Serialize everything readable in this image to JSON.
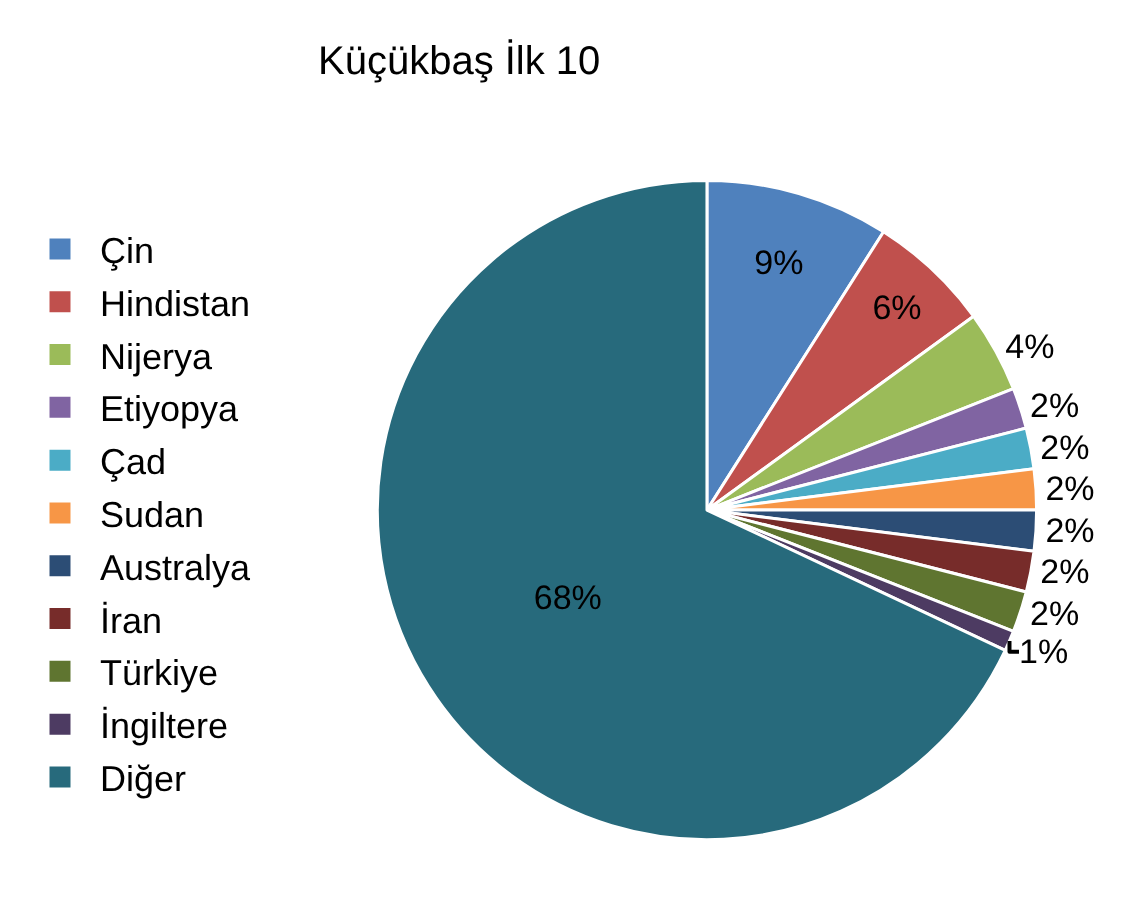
{
  "chart_data": {
    "type": "pie",
    "title": "Küçükbaş İlk 10",
    "categories": [
      "Çin",
      "Hindistan",
      "Nijerya",
      "Etiyopya",
      "Çad",
      "Sudan",
      "Australya",
      "İran",
      "Türkiye",
      "İngiltere",
      "Diğer"
    ],
    "values": [
      9,
      6,
      4,
      2,
      2,
      2,
      2,
      2,
      2,
      1,
      68
    ],
    "value_labels": [
      "9%",
      "6%",
      "4%",
      "2%",
      "2%",
      "2%",
      "2%",
      "2%",
      "2%",
      "1%",
      "68%"
    ],
    "colors": [
      "#4f81bd",
      "#c0504d",
      "#9bbb59",
      "#8064a2",
      "#4bacc6",
      "#f79646",
      "#2c4d75",
      "#772c2a",
      "#5f7530",
      "#4d3b62",
      "#276a7c"
    ],
    "legend": "left"
  }
}
